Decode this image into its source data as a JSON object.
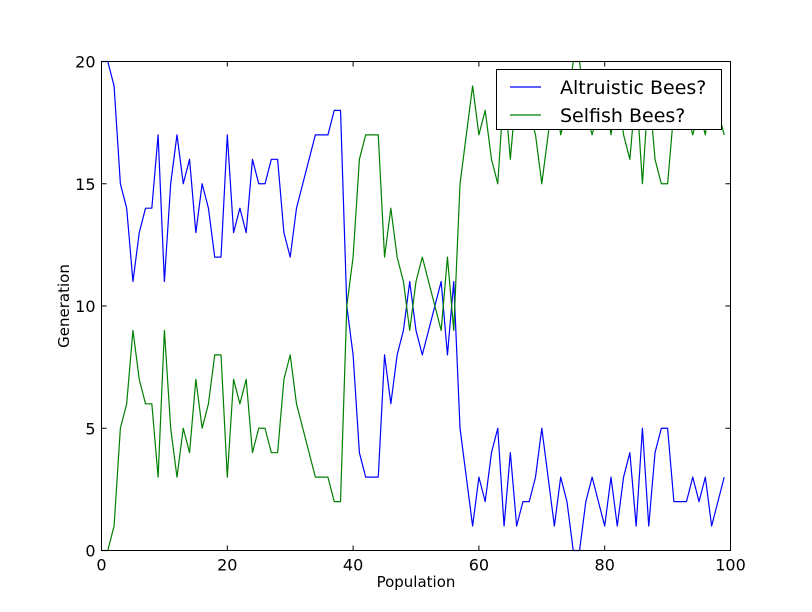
{
  "chart_data": {
    "type": "line",
    "title": "",
    "xlabel": "Population",
    "ylabel": "Generation",
    "xlim": [
      0,
      100
    ],
    "ylim": [
      0,
      20
    ],
    "x_ticks": [
      0,
      20,
      40,
      60,
      80,
      100
    ],
    "y_ticks": [
      0,
      5,
      10,
      15,
      20
    ],
    "grid": false,
    "legend": "top-right",
    "x": [
      0,
      1,
      2,
      3,
      4,
      5,
      6,
      7,
      8,
      9,
      10,
      11,
      12,
      13,
      14,
      15,
      16,
      17,
      18,
      19,
      20,
      21,
      22,
      23,
      24,
      25,
      26,
      27,
      28,
      29,
      30,
      31,
      32,
      33,
      34,
      35,
      36,
      37,
      38,
      39,
      40,
      41,
      42,
      43,
      44,
      45,
      46,
      47,
      48,
      49,
      50,
      51,
      52,
      53,
      54,
      55,
      56,
      57,
      58,
      59,
      60,
      61,
      62,
      63,
      64,
      65,
      66,
      67,
      68,
      69,
      70,
      71,
      72,
      73,
      74,
      75,
      76,
      77,
      78,
      79,
      80,
      81,
      82,
      83,
      84,
      85,
      86,
      87,
      88,
      89,
      90,
      91,
      92,
      93,
      94,
      95,
      96,
      97,
      98,
      99
    ],
    "series": [
      {
        "name": "Altruistic Bees?",
        "color": "#0000ff",
        "values": [
          20,
          20,
          19,
          15,
          14,
          11,
          13,
          14,
          14,
          17,
          11,
          15,
          17,
          15,
          16,
          13,
          15,
          14,
          12,
          12,
          17,
          13,
          14,
          13,
          16,
          15,
          15,
          16,
          16,
          13,
          12,
          14,
          15,
          16,
          17,
          17,
          17,
          18,
          18,
          10,
          8,
          4,
          3,
          3,
          3,
          8,
          6,
          8,
          9,
          11,
          9,
          8,
          9,
          10,
          11,
          8,
          11,
          5,
          3,
          1,
          3,
          2,
          4,
          5,
          1,
          4,
          1,
          2,
          2,
          3,
          5,
          3,
          1,
          3,
          2,
          0,
          0,
          2,
          3,
          2,
          1,
          3,
          1,
          3,
          4,
          1,
          5,
          1,
          4,
          5,
          5,
          2,
          2,
          2,
          3,
          2,
          3,
          1,
          2,
          3
        ]
      },
      {
        "name": "Selfish Bees?",
        "color": "#008000",
        "values": [
          0,
          0,
          1,
          5,
          6,
          9,
          7,
          6,
          6,
          3,
          9,
          5,
          3,
          5,
          4,
          7,
          5,
          6,
          8,
          8,
          3,
          7,
          6,
          7,
          4,
          5,
          5,
          4,
          4,
          7,
          8,
          6,
          5,
          4,
          3,
          3,
          3,
          2,
          2,
          10,
          12,
          16,
          17,
          17,
          17,
          12,
          14,
          12,
          11,
          9,
          11,
          12,
          11,
          10,
          9,
          12,
          9,
          15,
          17,
          19,
          17,
          18,
          16,
          15,
          19,
          16,
          19,
          18,
          18,
          17,
          15,
          17,
          19,
          17,
          18,
          20,
          20,
          18,
          17,
          18,
          19,
          17,
          19,
          17,
          16,
          19,
          15,
          19,
          16,
          15,
          15,
          18,
          18,
          18,
          17,
          18,
          17,
          19,
          18,
          17
        ]
      }
    ]
  }
}
